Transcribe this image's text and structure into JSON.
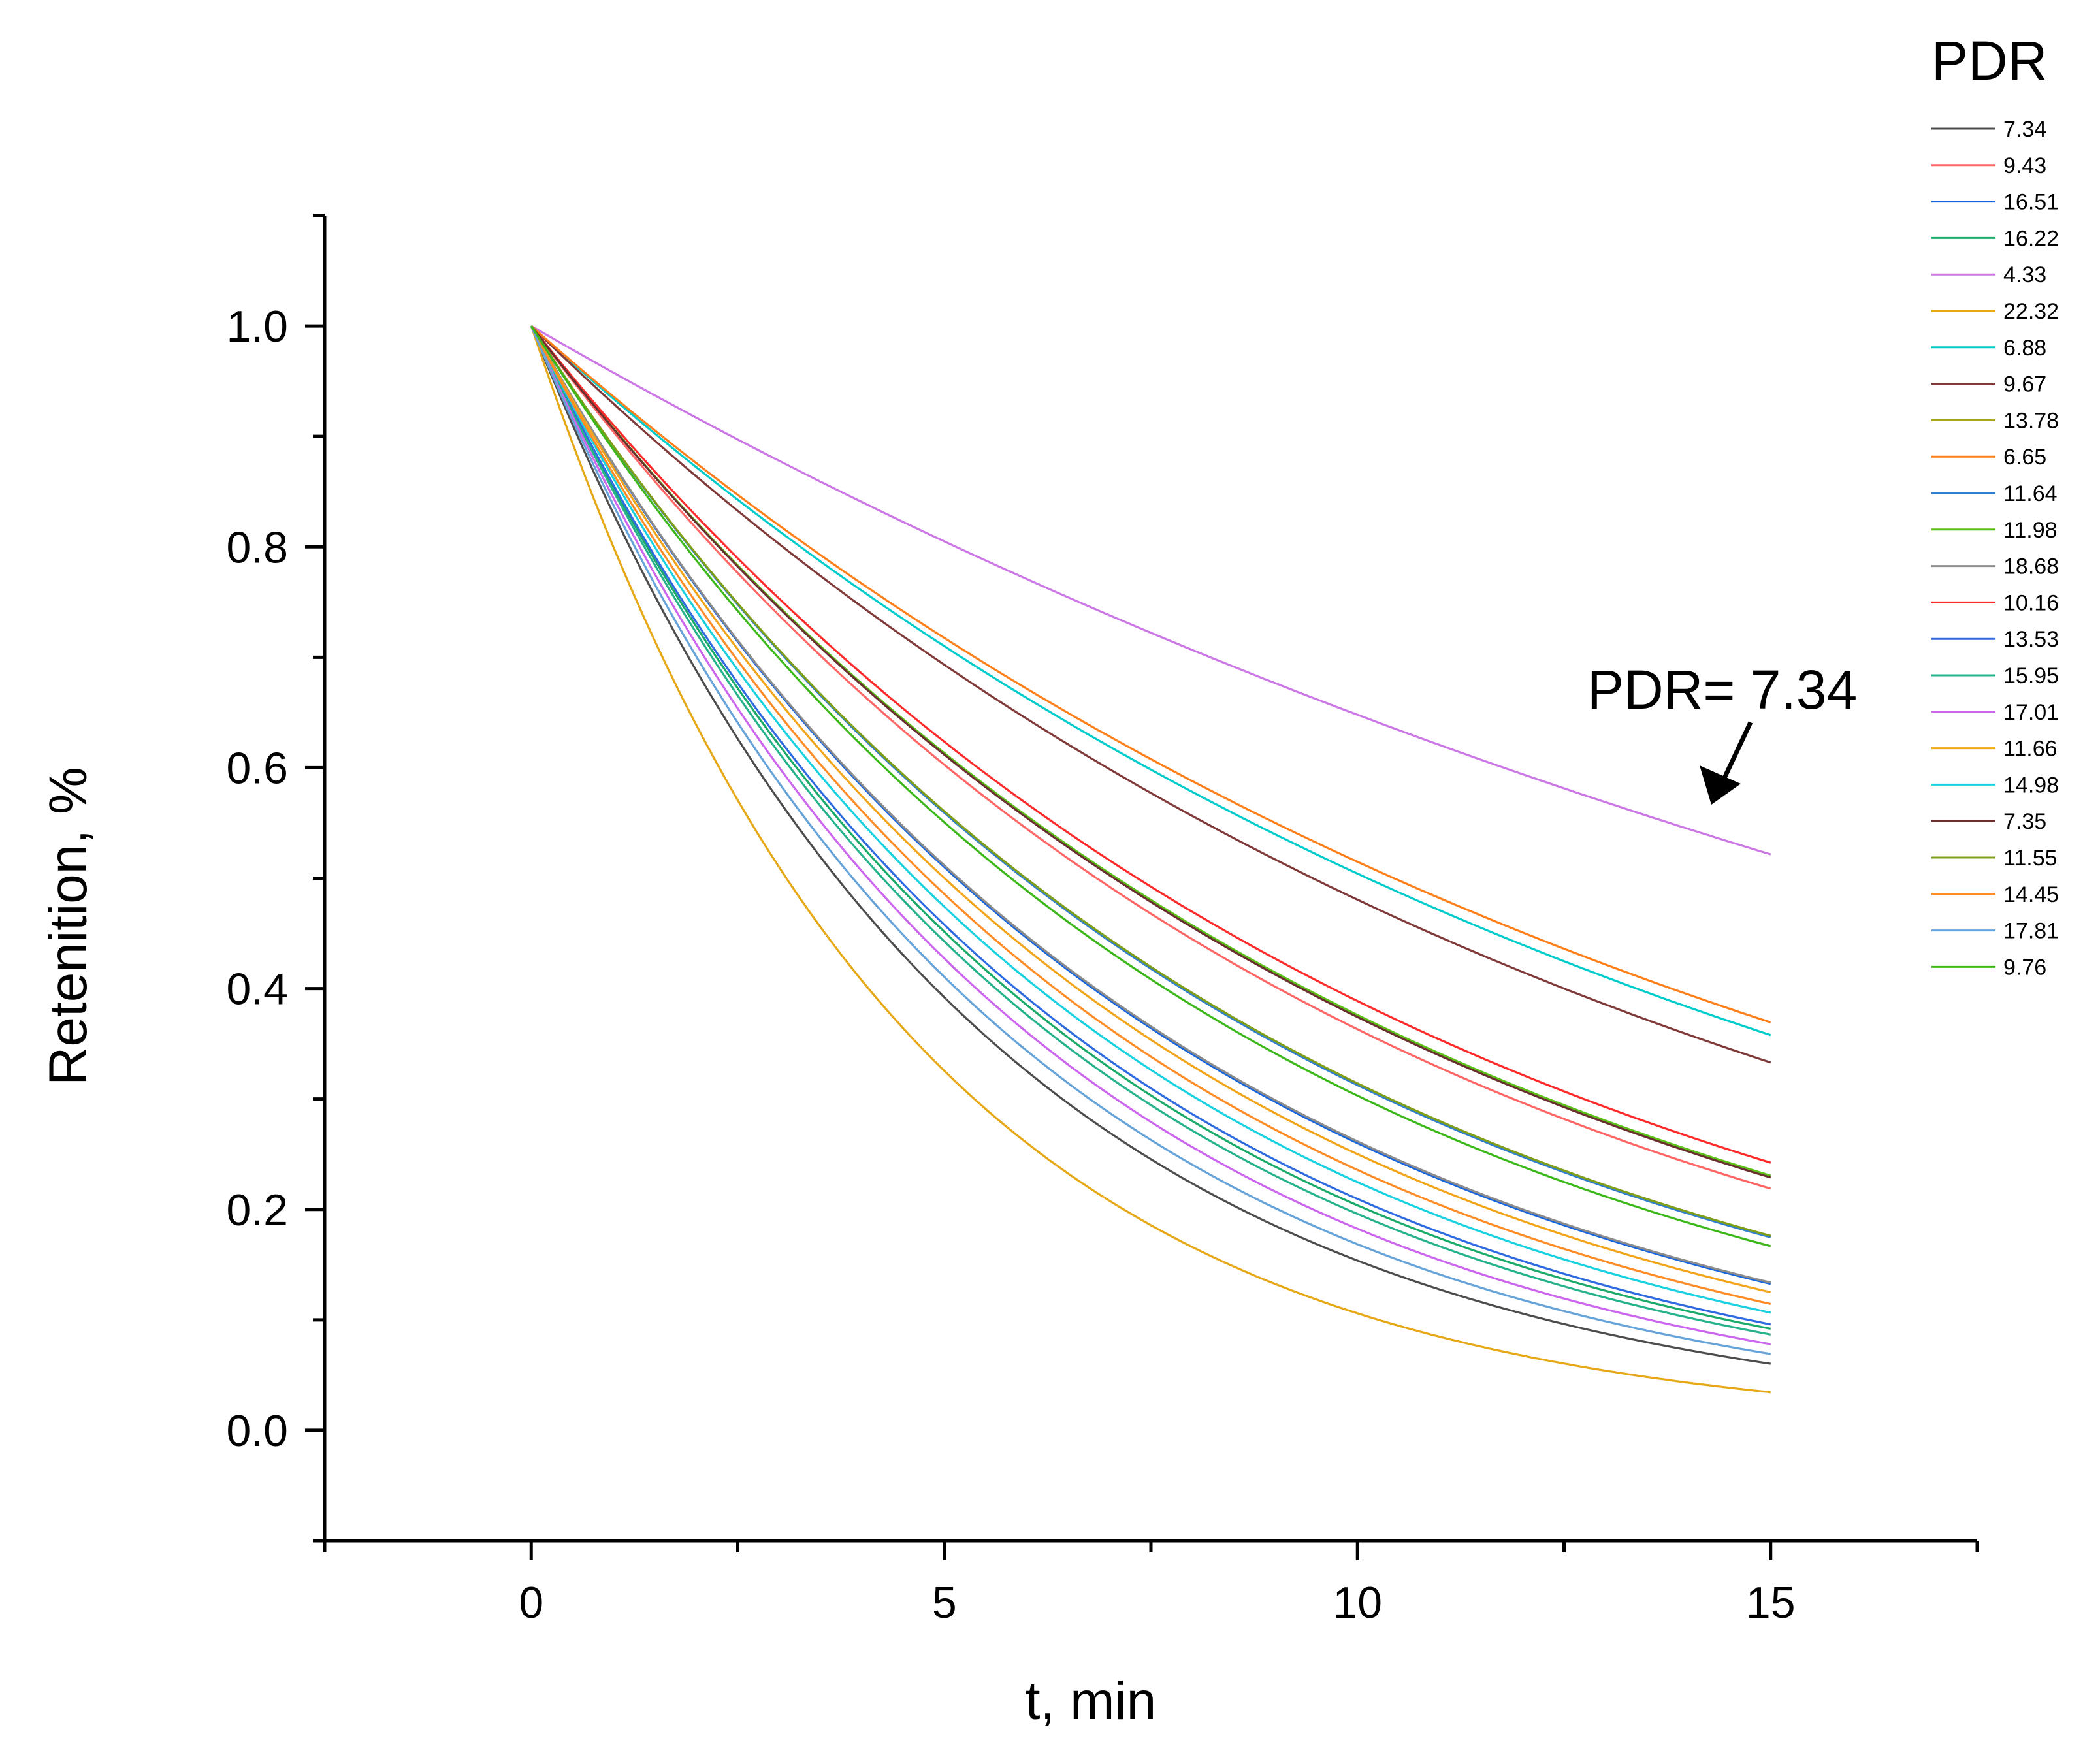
{
  "chart_data": {
    "type": "line",
    "title": "",
    "xlabel": "t, min",
    "ylabel": "Retenition, %",
    "xlim": [
      -2.5,
      17.5
    ],
    "ylim": [
      -0.1,
      1.1
    ],
    "x_ticks": [
      "0",
      "5",
      "10",
      "15"
    ],
    "y_ticks": [
      "0.0",
      "0.2",
      "0.4",
      "0.6",
      "0.8",
      "1.0"
    ],
    "x": [
      0,
      15
    ],
    "legend_title": "PDR",
    "legend_position": "right",
    "annotation": "PDR= 7.34",
    "series": [
      {
        "name": "7.34",
        "color": "#4d4d4d",
        "k": 0.1873,
        "values": [
          1.0,
          0.06
        ]
      },
      {
        "name": "9.43",
        "color": "#ff6666",
        "k": 0.1013,
        "values": [
          1.0,
          0.219
        ]
      },
      {
        "name": "16.51",
        "color": "#1565e0",
        "k": 0.1347,
        "values": [
          1.0,
          0.132
        ]
      },
      {
        "name": "16.22",
        "color": "#1aaa6a",
        "k": 0.1591,
        "values": [
          1.0,
          0.092
        ]
      },
      {
        "name": "4.33",
        "color": "#cc77e6",
        "k": 0.0434,
        "values": [
          1.0,
          0.522
        ]
      },
      {
        "name": "22.32",
        "color": "#e6a817",
        "k": 0.2245,
        "values": [
          1.0,
          0.035
        ]
      },
      {
        "name": "6.88",
        "color": "#00cccc",
        "k": 0.0685,
        "values": [
          1.0,
          0.358
        ]
      },
      {
        "name": "9.67",
        "color": "#803a3a",
        "k": 0.0733,
        "values": [
          1.0,
          0.333
        ]
      },
      {
        "name": "13.78",
        "color": "#a6a619",
        "k": 0.1158,
        "values": [
          1.0,
          0.176
        ]
      },
      {
        "name": "6.65",
        "color": "#ff7f1a",
        "k": 0.0664,
        "values": [
          1.0,
          0.369
        ]
      },
      {
        "name": "11.64",
        "color": "#2f7fd1",
        "k": 0.1163,
        "values": [
          1.0,
          0.175
        ]
      },
      {
        "name": "11.98",
        "color": "#5cc21a",
        "k": 0.0978,
        "values": [
          1.0,
          0.231
        ]
      },
      {
        "name": "18.68",
        "color": "#8c8c8c",
        "k": 0.1341,
        "values": [
          1.0,
          0.134
        ]
      },
      {
        "name": "10.16",
        "color": "#ff2a2a",
        "k": 0.0945,
        "values": [
          1.0,
          0.242
        ]
      },
      {
        "name": "13.53",
        "color": "#2f6be0",
        "k": 0.1563,
        "values": [
          1.0,
          0.096
        ]
      },
      {
        "name": "15.95",
        "color": "#26b38c",
        "k": 0.163,
        "values": [
          1.0,
          0.087
        ]
      },
      {
        "name": "17.01",
        "color": "#cc66ee",
        "k": 0.1701,
        "values": [
          1.0,
          0.078
        ]
      },
      {
        "name": "11.66",
        "color": "#f2a51a",
        "k": 0.1386,
        "values": [
          1.0,
          0.125
        ]
      },
      {
        "name": "14.98",
        "color": "#19d1e0",
        "k": 0.1493,
        "values": [
          1.0,
          0.106
        ]
      },
      {
        "name": "7.35",
        "color": "#6a2f2f",
        "k": 0.0983,
        "values": [
          1.0,
          0.229
        ]
      },
      {
        "name": "11.55",
        "color": "#7f9f1a",
        "k": 0.1158,
        "values": [
          1.0,
          0.176
        ]
      },
      {
        "name": "14.45",
        "color": "#ff8c26",
        "k": 0.1445,
        "values": [
          1.0,
          0.114
        ]
      },
      {
        "name": "17.81",
        "color": "#66a3d9",
        "k": 0.1781,
        "values": [
          1.0,
          0.069
        ]
      },
      {
        "name": "9.76",
        "color": "#3cb81a",
        "k": 0.1194,
        "values": [
          1.0,
          0.167
        ]
      }
    ]
  }
}
